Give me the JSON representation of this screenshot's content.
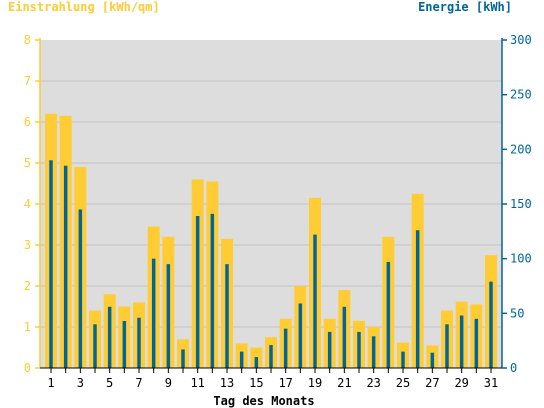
{
  "chart_data": {
    "type": "bar",
    "title_left": "Einstrahlung [kWh/qm]",
    "title_right": "Energie [kWh]",
    "xlabel": "Tag des Monats",
    "categories": [
      1,
      2,
      3,
      4,
      5,
      6,
      7,
      8,
      9,
      10,
      11,
      12,
      13,
      14,
      15,
      16,
      17,
      18,
      19,
      20,
      21,
      22,
      23,
      24,
      25,
      26,
      27,
      28,
      29,
      30,
      31
    ],
    "x_tick_labels": [
      "1",
      "3",
      "5",
      "7",
      "9",
      "11",
      "13",
      "15",
      "17",
      "19",
      "21",
      "23",
      "25",
      "27",
      "29",
      "31"
    ],
    "left_axis": {
      "ylim": [
        0,
        8
      ],
      "ticks": [
        "0",
        "1",
        "2",
        "3",
        "4",
        "5",
        "6",
        "7",
        "8"
      ]
    },
    "right_axis": {
      "ylim": [
        0,
        300
      ],
      "ticks": [
        "0",
        "50",
        "100",
        "150",
        "200",
        "250",
        "300"
      ]
    },
    "series": [
      {
        "axis": "left",
        "color": "#ffcc33",
        "values": [
          6.2,
          6.15,
          4.9,
          1.4,
          1.8,
          1.5,
          1.6,
          3.45,
          3.2,
          0.7,
          4.6,
          4.55,
          3.15,
          0.6,
          0.5,
          0.75,
          1.2,
          2.0,
          4.15,
          1.2,
          1.9,
          1.15,
          1.0,
          3.2,
          0.62,
          4.25,
          0.55,
          1.4,
          1.62,
          1.55,
          2.75
        ]
      },
      {
        "axis": "right",
        "color": "#006699",
        "values": [
          190,
          185,
          145,
          40,
          56,
          43,
          46,
          100,
          95,
          17,
          139,
          141,
          95,
          15,
          10,
          21,
          36,
          59,
          122,
          33,
          56,
          33,
          29,
          97,
          15,
          126,
          14,
          40,
          48,
          45,
          79
        ]
      }
    ],
    "grid": "horizontal",
    "plot_background": "#dddddd",
    "left_axis_color": "#ffcc33",
    "right_axis_color": "#006699"
  }
}
